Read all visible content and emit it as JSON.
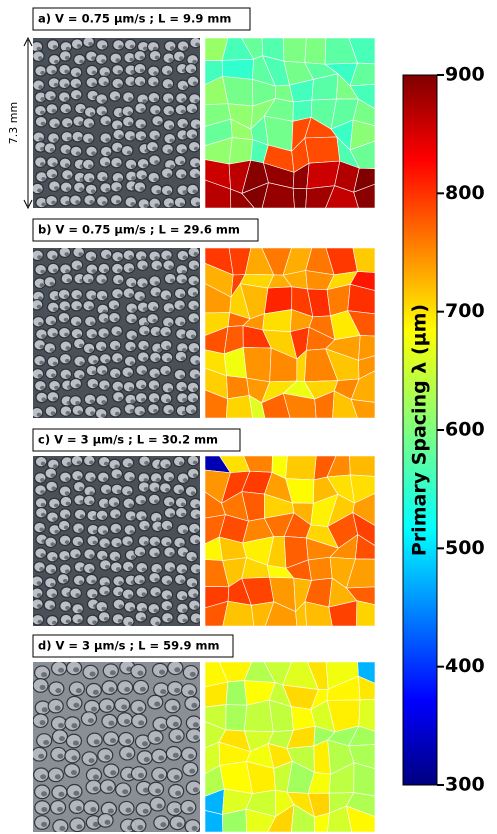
{
  "panels": [
    {
      "label": "a) V = 0.75 µm/s ; L = 9.9 mm"
    },
    {
      "label": "b) V = 0.75 µm/s ; L = 29.6 mm"
    },
    {
      "label": "c) V = 3 µm/s ; L = 30.2 mm"
    },
    {
      "label": "d) V = 3 µm/s ; L = 59.9 mm"
    }
  ],
  "scale_label": "7.3 mm",
  "colorbar": {
    "title": "Primary Spacing λ (µm)",
    "lim": [
      300,
      900
    ],
    "ticks": [
      300,
      400,
      500,
      600,
      700,
      800,
      900
    ]
  }
}
